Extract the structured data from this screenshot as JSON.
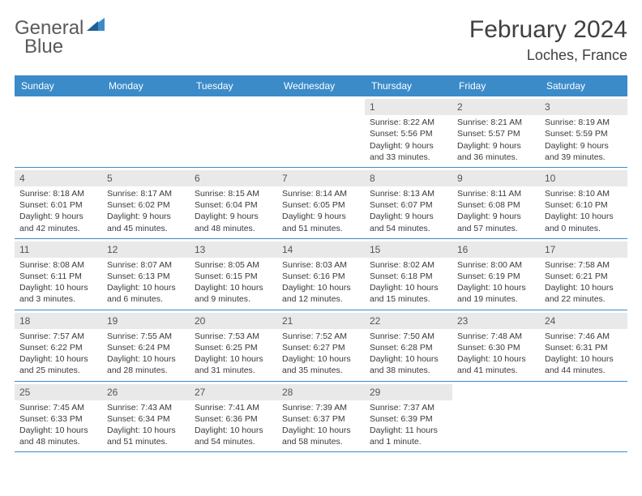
{
  "logo": {
    "text1": "General",
    "text2": "Blue",
    "color1": "#5a5a5a",
    "color2": "#3b8bc9"
  },
  "title": "February 2024",
  "location": "Loches, France",
  "colors": {
    "header_bg": "#3b8bc9",
    "header_text": "#ffffff",
    "daynum_bg": "#e9e9e9",
    "border": "#3b8bc9",
    "text": "#3a3a3a",
    "title_text": "#404040",
    "page_bg": "#ffffff"
  },
  "typography": {
    "title_fontsize": 30,
    "location_fontsize": 18,
    "dayhead_fontsize": 12,
    "cell_fontsize": 10.5,
    "daynum_fontsize": 12
  },
  "day_headers": [
    "Sunday",
    "Monday",
    "Tuesday",
    "Wednesday",
    "Thursday",
    "Friday",
    "Saturday"
  ],
  "weeks": [
    [
      null,
      null,
      null,
      null,
      {
        "n": "1",
        "sunrise": "Sunrise: 8:22 AM",
        "sunset": "Sunset: 5:56 PM",
        "daylight": "Daylight: 9 hours and 33 minutes."
      },
      {
        "n": "2",
        "sunrise": "Sunrise: 8:21 AM",
        "sunset": "Sunset: 5:57 PM",
        "daylight": "Daylight: 9 hours and 36 minutes."
      },
      {
        "n": "3",
        "sunrise": "Sunrise: 8:19 AM",
        "sunset": "Sunset: 5:59 PM",
        "daylight": "Daylight: 9 hours and 39 minutes."
      }
    ],
    [
      {
        "n": "4",
        "sunrise": "Sunrise: 8:18 AM",
        "sunset": "Sunset: 6:01 PM",
        "daylight": "Daylight: 9 hours and 42 minutes."
      },
      {
        "n": "5",
        "sunrise": "Sunrise: 8:17 AM",
        "sunset": "Sunset: 6:02 PM",
        "daylight": "Daylight: 9 hours and 45 minutes."
      },
      {
        "n": "6",
        "sunrise": "Sunrise: 8:15 AM",
        "sunset": "Sunset: 6:04 PM",
        "daylight": "Daylight: 9 hours and 48 minutes."
      },
      {
        "n": "7",
        "sunrise": "Sunrise: 8:14 AM",
        "sunset": "Sunset: 6:05 PM",
        "daylight": "Daylight: 9 hours and 51 minutes."
      },
      {
        "n": "8",
        "sunrise": "Sunrise: 8:13 AM",
        "sunset": "Sunset: 6:07 PM",
        "daylight": "Daylight: 9 hours and 54 minutes."
      },
      {
        "n": "9",
        "sunrise": "Sunrise: 8:11 AM",
        "sunset": "Sunset: 6:08 PM",
        "daylight": "Daylight: 9 hours and 57 minutes."
      },
      {
        "n": "10",
        "sunrise": "Sunrise: 8:10 AM",
        "sunset": "Sunset: 6:10 PM",
        "daylight": "Daylight: 10 hours and 0 minutes."
      }
    ],
    [
      {
        "n": "11",
        "sunrise": "Sunrise: 8:08 AM",
        "sunset": "Sunset: 6:11 PM",
        "daylight": "Daylight: 10 hours and 3 minutes."
      },
      {
        "n": "12",
        "sunrise": "Sunrise: 8:07 AM",
        "sunset": "Sunset: 6:13 PM",
        "daylight": "Daylight: 10 hours and 6 minutes."
      },
      {
        "n": "13",
        "sunrise": "Sunrise: 8:05 AM",
        "sunset": "Sunset: 6:15 PM",
        "daylight": "Daylight: 10 hours and 9 minutes."
      },
      {
        "n": "14",
        "sunrise": "Sunrise: 8:03 AM",
        "sunset": "Sunset: 6:16 PM",
        "daylight": "Daylight: 10 hours and 12 minutes."
      },
      {
        "n": "15",
        "sunrise": "Sunrise: 8:02 AM",
        "sunset": "Sunset: 6:18 PM",
        "daylight": "Daylight: 10 hours and 15 minutes."
      },
      {
        "n": "16",
        "sunrise": "Sunrise: 8:00 AM",
        "sunset": "Sunset: 6:19 PM",
        "daylight": "Daylight: 10 hours and 19 minutes."
      },
      {
        "n": "17",
        "sunrise": "Sunrise: 7:58 AM",
        "sunset": "Sunset: 6:21 PM",
        "daylight": "Daylight: 10 hours and 22 minutes."
      }
    ],
    [
      {
        "n": "18",
        "sunrise": "Sunrise: 7:57 AM",
        "sunset": "Sunset: 6:22 PM",
        "daylight": "Daylight: 10 hours and 25 minutes."
      },
      {
        "n": "19",
        "sunrise": "Sunrise: 7:55 AM",
        "sunset": "Sunset: 6:24 PM",
        "daylight": "Daylight: 10 hours and 28 minutes."
      },
      {
        "n": "20",
        "sunrise": "Sunrise: 7:53 AM",
        "sunset": "Sunset: 6:25 PM",
        "daylight": "Daylight: 10 hours and 31 minutes."
      },
      {
        "n": "21",
        "sunrise": "Sunrise: 7:52 AM",
        "sunset": "Sunset: 6:27 PM",
        "daylight": "Daylight: 10 hours and 35 minutes."
      },
      {
        "n": "22",
        "sunrise": "Sunrise: 7:50 AM",
        "sunset": "Sunset: 6:28 PM",
        "daylight": "Daylight: 10 hours and 38 minutes."
      },
      {
        "n": "23",
        "sunrise": "Sunrise: 7:48 AM",
        "sunset": "Sunset: 6:30 PM",
        "daylight": "Daylight: 10 hours and 41 minutes."
      },
      {
        "n": "24",
        "sunrise": "Sunrise: 7:46 AM",
        "sunset": "Sunset: 6:31 PM",
        "daylight": "Daylight: 10 hours and 44 minutes."
      }
    ],
    [
      {
        "n": "25",
        "sunrise": "Sunrise: 7:45 AM",
        "sunset": "Sunset: 6:33 PM",
        "daylight": "Daylight: 10 hours and 48 minutes."
      },
      {
        "n": "26",
        "sunrise": "Sunrise: 7:43 AM",
        "sunset": "Sunset: 6:34 PM",
        "daylight": "Daylight: 10 hours and 51 minutes."
      },
      {
        "n": "27",
        "sunrise": "Sunrise: 7:41 AM",
        "sunset": "Sunset: 6:36 PM",
        "daylight": "Daylight: 10 hours and 54 minutes."
      },
      {
        "n": "28",
        "sunrise": "Sunrise: 7:39 AM",
        "sunset": "Sunset: 6:37 PM",
        "daylight": "Daylight: 10 hours and 58 minutes."
      },
      {
        "n": "29",
        "sunrise": "Sunrise: 7:37 AM",
        "sunset": "Sunset: 6:39 PM",
        "daylight": "Daylight: 11 hours and 1 minute."
      },
      null,
      null
    ]
  ]
}
